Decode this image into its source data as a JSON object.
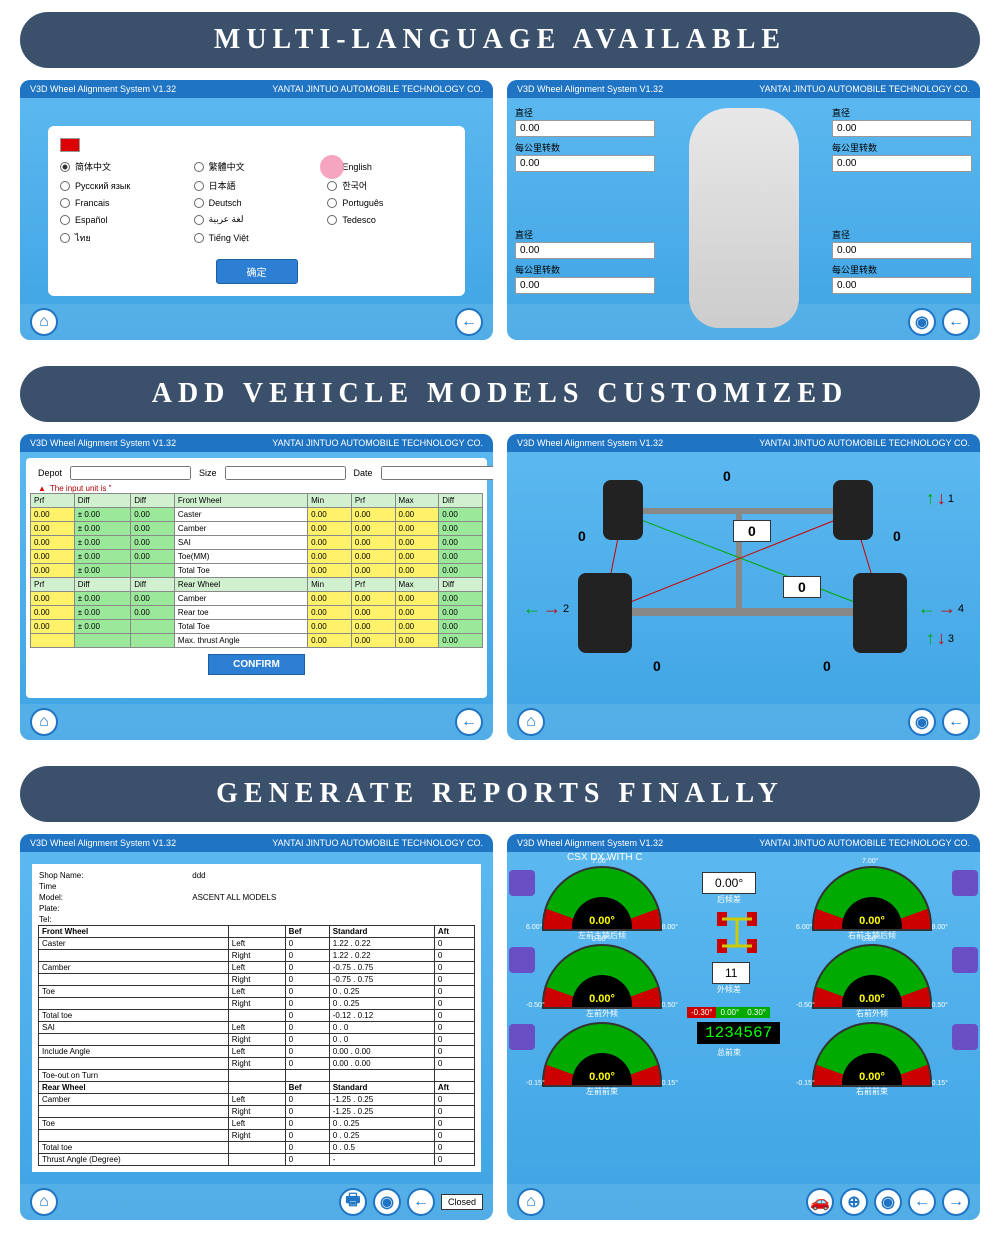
{
  "headers": {
    "h1": "MULTI-LANGUAGE AVAILABLE",
    "h2": "ADD VEHICLE MODELS CUSTOMIZED",
    "h3": "GENERATE REPORTS FINALLY"
  },
  "titlebar": {
    "app": "V3D Wheel Alignment System V1.32",
    "company": "YANTAI JINTUO AUTOMOBILE TECHNOLOGY CO."
  },
  "colors": {
    "header_bg": "#3b506b",
    "screen_bg1": "#5db9f0",
    "screen_bg2": "#3fa4e4",
    "titlebar_bg": "#1f75c4",
    "yellow": "#fff26b",
    "green": "#9be89b"
  },
  "lang": {
    "options": [
      {
        "label": "简体中文",
        "selected": true
      },
      {
        "label": "繁體中文",
        "selected": false
      },
      {
        "label": "English",
        "selected": false
      },
      {
        "label": "Русский язык",
        "selected": false
      },
      {
        "label": "日本語",
        "selected": false
      },
      {
        "label": "한국어",
        "selected": false
      },
      {
        "label": "Francais",
        "selected": false
      },
      {
        "label": "Deutsch",
        "selected": false
      },
      {
        "label": "Português",
        "selected": false
      },
      {
        "label": "Español",
        "selected": false
      },
      {
        "label": "لغة عربية",
        "selected": false
      },
      {
        "label": "Tedesco",
        "selected": false
      },
      {
        "label": "ไทย",
        "selected": false
      },
      {
        "label": "Tiếng Việt",
        "selected": false
      }
    ],
    "confirm": "确定"
  },
  "car_params": {
    "label1": "直径",
    "label2": "每公里转数",
    "value": "0.00"
  },
  "spec_table": {
    "depot": "Depot",
    "size": "Size",
    "date": "Date",
    "warning": "The input unit is \"",
    "front_cols": [
      "Prf",
      "Diff",
      "Diff",
      "Front Wheel",
      "Min",
      "Prf",
      "Max",
      "Diff"
    ],
    "front_rows": [
      [
        "0.00",
        "± 0.00",
        "0.00",
        "Caster",
        "0.00",
        "0.00",
        "0.00",
        "0.00"
      ],
      [
        "0.00",
        "± 0.00",
        "0.00",
        "Camber",
        "0.00",
        "0.00",
        "0.00",
        "0.00"
      ],
      [
        "0.00",
        "± 0.00",
        "0.00",
        "SAI",
        "0.00",
        "0.00",
        "0.00",
        "0.00"
      ],
      [
        "0.00",
        "± 0.00",
        "0.00",
        "Toe(MM)",
        "0.00",
        "0.00",
        "0.00",
        "0.00"
      ],
      [
        "0.00",
        "± 0.00",
        "",
        "Total Toe",
        "0.00",
        "0.00",
        "0.00",
        "0.00"
      ]
    ],
    "rear_cols": [
      "Prf",
      "Diff",
      "Diff",
      "Rear Wheel",
      "Min",
      "Prf",
      "Max",
      "Diff"
    ],
    "rear_rows": [
      [
        "0.00",
        "± 0.00",
        "0.00",
        "Camber",
        "0.00",
        "0.00",
        "0.00",
        "0.00"
      ],
      [
        "0.00",
        "± 0.00",
        "0.00",
        "Rear toe",
        "0.00",
        "0.00",
        "0.00",
        "0.00"
      ],
      [
        "0.00",
        "± 0.00",
        "",
        "Total Toe",
        "0.00",
        "0.00",
        "0.00",
        "0.00"
      ],
      [
        "",
        "",
        "",
        "Max. thrust Angle",
        "0.00",
        "0.00",
        "0.00",
        "0.00"
      ]
    ],
    "confirm": "CONFIRM"
  },
  "axle": {
    "zero": "0",
    "markers": [
      "1",
      "2",
      "3",
      "4"
    ]
  },
  "report": {
    "fields": {
      "shop": "Shop Name:",
      "shop_v": "ddd",
      "time": "Time",
      "model": "Model:",
      "model_v": "ASCENT ALL MODELS",
      "plate": "Plate:",
      "tel": "Tel:"
    },
    "cols": [
      "",
      "",
      "Bef",
      "Standard",
      "Aft"
    ],
    "sections": [
      {
        "h": "Front Wheel",
        "rows": [
          [
            "Caster",
            "Left",
            "0",
            "1.22 . 0.22",
            "0"
          ],
          [
            "",
            "Right",
            "0",
            "1.22 . 0.22",
            "0"
          ],
          [
            "Camber",
            "Left",
            "0",
            "-0.75 . 0.75",
            "0"
          ],
          [
            "",
            "Right",
            "0",
            "-0.75 . 0.75",
            "0"
          ],
          [
            "Toe",
            "Left",
            "0",
            "0 . 0.25",
            "0"
          ],
          [
            "",
            "Right",
            "0",
            "0 . 0.25",
            "0"
          ],
          [
            "Total toe",
            "",
            "0",
            "-0.12 . 0.12",
            "0"
          ],
          [
            "SAI",
            "Left",
            "0",
            "0 . 0",
            "0"
          ],
          [
            "",
            "Right",
            "0",
            "0 . 0",
            "0"
          ],
          [
            "Include Angle",
            "Left",
            "0",
            "0.00 . 0.00",
            "0"
          ],
          [
            "",
            "Right",
            "0",
            "0.00 . 0.00",
            "0"
          ],
          [
            "Toe-out on Turn",
            "",
            "",
            "",
            ""
          ]
        ]
      },
      {
        "h": "Rear Wheel",
        "rows": [
          [
            "Camber",
            "Left",
            "0",
            "-1.25 . 0.25",
            "0"
          ],
          [
            "",
            "Right",
            "0",
            "-1.25 . 0.25",
            "0"
          ],
          [
            "Toe",
            "Left",
            "0",
            "0 . 0.25",
            "0"
          ],
          [
            "",
            "Right",
            "0",
            "0 . 0.25",
            "0"
          ],
          [
            "Total toe",
            "",
            "0",
            "0 . 0.5",
            "0"
          ],
          [
            "Thrust Angle (Degree)",
            "",
            "0",
            "-",
            "0"
          ]
        ]
      }
    ],
    "closed": "Closed"
  },
  "gauges": {
    "model": "CSX DX WITH C",
    "items": [
      {
        "val": "0.00°",
        "title": "左前主销后倾",
        "l": "6.00°",
        "r": "8.00°",
        "t": "7.00°"
      },
      {
        "val": "0.00°",
        "title": "右前主销后倾",
        "l": "6.00°",
        "r": "8.00°",
        "t": "7.00°"
      },
      {
        "val": "0.00°",
        "title": "左前外倾",
        "l": "-0.50°",
        "r": "0.50°",
        "t": "0.00°"
      },
      {
        "val": "0.00°",
        "title": "右前外倾",
        "l": "-0.50°",
        "r": "0.50°",
        "t": "0.00°"
      },
      {
        "val": "0.00°",
        "title": "左前前束",
        "l": "-0.15°",
        "r": "0.15°",
        "t": ""
      },
      {
        "val": "0.00°",
        "title": "右前前束",
        "l": "-0.15°",
        "r": "0.15°",
        "t": ""
      }
    ],
    "center_val": "0.00°",
    "center_label1": "后倾差",
    "center_val2": "11",
    "center_label2": "外倾差",
    "digits": "1234567",
    "total_label": "总前束",
    "mini": [
      "-0.30°",
      "0.00°",
      "0.30°"
    ]
  }
}
